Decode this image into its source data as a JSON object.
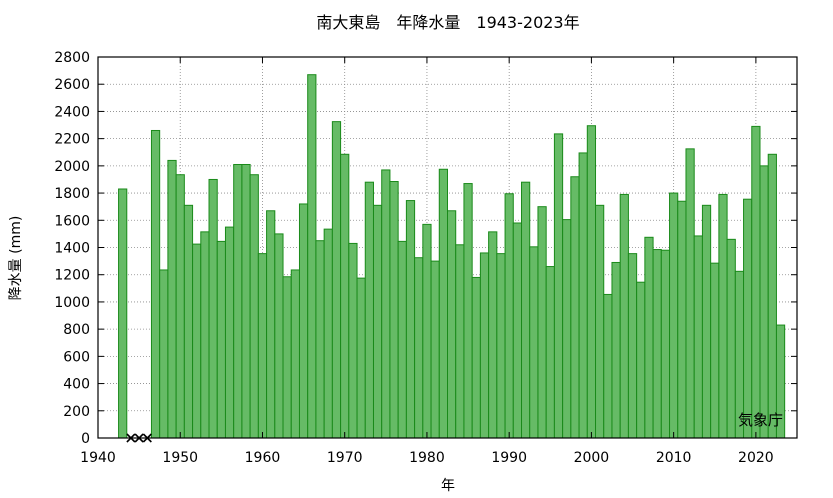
{
  "chart_data": {
    "type": "bar",
    "title": "南大東島　年降水量　1943-2023年",
    "xlabel": "年",
    "ylabel": "降水量 (mm)",
    "credit": "気象庁",
    "xlim": [
      1940,
      2025
    ],
    "ylim": [
      0,
      2800
    ],
    "x_ticks": [
      1940,
      1950,
      1960,
      1970,
      1980,
      1990,
      2000,
      2010,
      2020
    ],
    "y_ticks": [
      0,
      200,
      400,
      600,
      800,
      1000,
      1200,
      1400,
      1600,
      1800,
      2000,
      2200,
      2400,
      2600,
      2800
    ],
    "grid": true,
    "bar_color": "#66bb66",
    "bar_edge_color": "#1a8a1a",
    "missing_marker_color": "#000000",
    "missing_years": [
      1944,
      1945,
      1946
    ],
    "years": [
      1943,
      1947,
      1948,
      1949,
      1950,
      1951,
      1952,
      1953,
      1954,
      1955,
      1956,
      1957,
      1958,
      1959,
      1960,
      1961,
      1962,
      1963,
      1964,
      1965,
      1966,
      1967,
      1968,
      1969,
      1970,
      1971,
      1972,
      1973,
      1974,
      1975,
      1976,
      1977,
      1978,
      1979,
      1980,
      1981,
      1982,
      1983,
      1984,
      1985,
      1986,
      1987,
      1988,
      1989,
      1990,
      1991,
      1992,
      1993,
      1994,
      1995,
      1996,
      1997,
      1998,
      1999,
      2000,
      2001,
      2002,
      2003,
      2004,
      2005,
      2006,
      2007,
      2008,
      2009,
      2010,
      2011,
      2012,
      2013,
      2014,
      2015,
      2016,
      2017,
      2018,
      2019,
      2020,
      2021,
      2022,
      2023
    ],
    "values": [
      1830,
      2260,
      1235,
      2040,
      1935,
      1710,
      1425,
      1515,
      1900,
      1445,
      1550,
      2010,
      2010,
      1935,
      1355,
      1670,
      1500,
      1185,
      1235,
      1720,
      2670,
      1450,
      1535,
      2325,
      2085,
      1430,
      1175,
      1880,
      1710,
      1970,
      1885,
      1445,
      1745,
      1325,
      1570,
      1300,
      1975,
      1670,
      1420,
      1870,
      1180,
      1360,
      1515,
      1355,
      1795,
      1580,
      1880,
      1405,
      1700,
      1260,
      2235,
      1605,
      1920,
      2095,
      2295,
      1710,
      1055,
      1290,
      1790,
      1355,
      1145,
      1475,
      1385,
      1380,
      1800,
      1740,
      2125,
      1485,
      1710,
      1285,
      1790,
      1460,
      1225,
      1755,
      2290,
      2000,
      2085,
      830
    ]
  }
}
